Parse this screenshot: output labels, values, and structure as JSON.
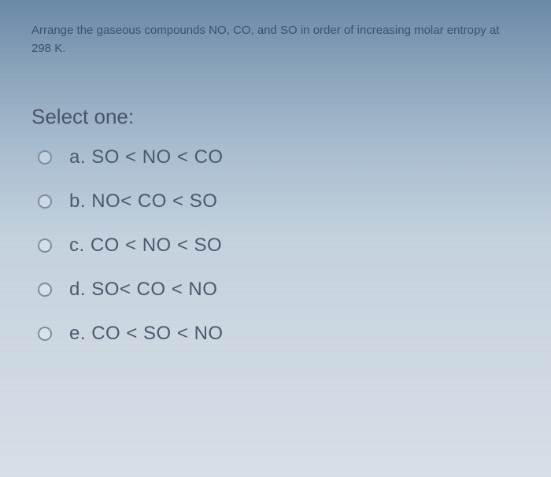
{
  "question": {
    "prompt": "Arrange the gaseous compounds NO, CO, and SO in order of increasing molar entropy at 298 K.",
    "select_label": "Select one:"
  },
  "options": [
    {
      "letter": "a.",
      "text": "SO < NO < CO"
    },
    {
      "letter": "b.",
      "text": "NO<  CO < SO"
    },
    {
      "letter": "c.",
      "text": "CO < NO < SO"
    },
    {
      "letter": "d.",
      "text": "SO< CO < NO"
    },
    {
      "letter": "e.",
      "text": "CO < SO < NO"
    }
  ],
  "colors": {
    "text_primary": "#4a5a70",
    "text_question": "#3a5270",
    "radio_border": "#7a8fa5"
  },
  "typography": {
    "question_fontsize": 15,
    "select_fontsize": 26,
    "option_fontsize": 24
  }
}
